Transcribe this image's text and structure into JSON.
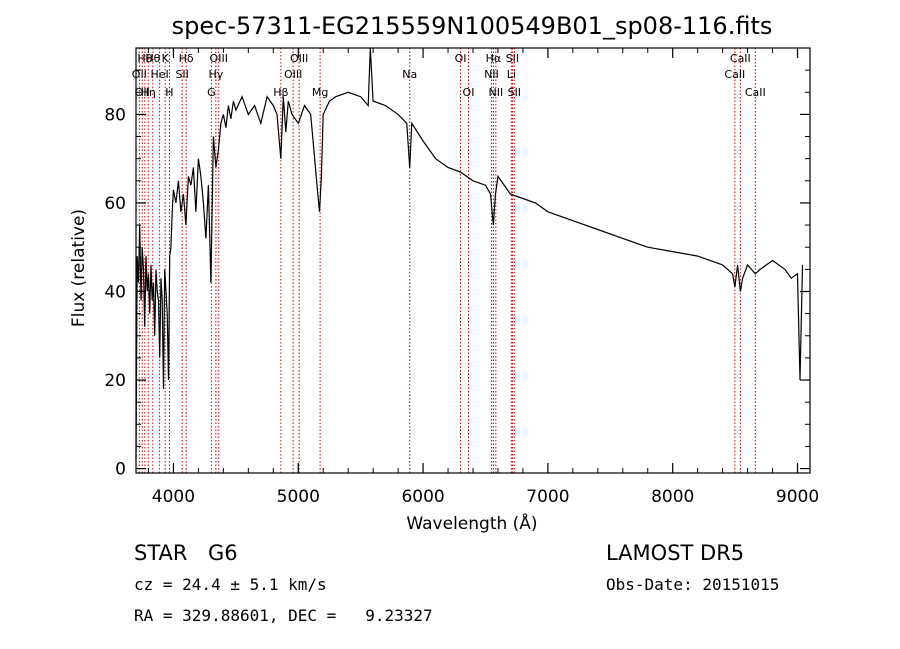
{
  "chart_data": {
    "type": "line",
    "title": "spec-57311-EG215559N100549B01_sp08-116.fits",
    "xlabel": "Wavelength (Å)",
    "ylabel": "Flux (relative)",
    "xlim": [
      3700,
      9100
    ],
    "ylim": [
      -1,
      95
    ],
    "xticks": [
      "4000",
      "5000",
      "6000",
      "7000",
      "8000",
      "9000"
    ],
    "yticks": [
      "0",
      "20",
      "40",
      "60",
      "80"
    ],
    "grid": false,
    "series": [
      {
        "x": [
          3700,
          3710,
          3720,
          3730,
          3740,
          3750,
          3760,
          3770,
          3780,
          3790,
          3800,
          3810,
          3820,
          3830,
          3840,
          3850,
          3860,
          3870,
          3880,
          3890,
          3900,
          3910,
          3920,
          3930,
          3940,
          3950,
          3960,
          3970,
          3980,
          3990,
          4000,
          4020,
          4040,
          4060,
          4080,
          4100,
          4120,
          4140,
          4160,
          4180,
          4200,
          4220,
          4240,
          4260,
          4280,
          4300,
          4320,
          4340,
          4360,
          4380,
          4400,
          4420,
          4440,
          4460,
          4480,
          4500,
          4550,
          4600,
          4650,
          4700,
          4750,
          4800,
          4830,
          4860,
          4880,
          4900,
          4920,
          4950,
          5000,
          5050,
          5100,
          5150,
          5170,
          5185,
          5200,
          5250,
          5300,
          5400,
          5500,
          5560,
          5577,
          5600,
          5700,
          5800,
          5870,
          5893,
          5910,
          6000,
          6100,
          6200,
          6300,
          6400,
          6500,
          6540,
          6563,
          6580,
          6600,
          6700,
          6800,
          6900,
          7000,
          7200,
          7400,
          7600,
          7800,
          8000,
          8200,
          8400,
          8480,
          8498,
          8520,
          8542,
          8560,
          8600,
          8662,
          8700,
          8800,
          8900,
          8950,
          9000,
          9020,
          9040
        ],
        "y": [
          2,
          48,
          42,
          55,
          38,
          50,
          45,
          32,
          48,
          40,
          44,
          35,
          46,
          38,
          42,
          30,
          45,
          40,
          38,
          25,
          43,
          38,
          18,
          45,
          40,
          35,
          20,
          48,
          50,
          58,
          63,
          60,
          65,
          58,
          62,
          55,
          66,
          64,
          68,
          58,
          70,
          66,
          60,
          52,
          64,
          42,
          75,
          68,
          72,
          78,
          80,
          77,
          82,
          79,
          83,
          81,
          84,
          80,
          82,
          78,
          84,
          82,
          80,
          70,
          84,
          76,
          83,
          80,
          78,
          82,
          80,
          64,
          58,
          66,
          80,
          83,
          84,
          85,
          84,
          82,
          95,
          83,
          82,
          80,
          78,
          68,
          78,
          74,
          70,
          68,
          67,
          65,
          64,
          62,
          55,
          62,
          66,
          62,
          61,
          60,
          58,
          56,
          54,
          52,
          50,
          49,
          48,
          46,
          44,
          41,
          46,
          40,
          43,
          46,
          44,
          45,
          47,
          45,
          43,
          44,
          20,
          46
        ]
      }
    ],
    "line_markers": [
      {
        "wl": 3727,
        "label": "OII",
        "row": 2
      },
      {
        "wl": 3750,
        "label": "OII",
        "row": 3
      },
      {
        "wl": 3771,
        "label": "Hθ",
        "row": 1
      },
      {
        "wl": 3798,
        "label": "Hη",
        "row": 3
      },
      {
        "wl": 3835,
        "label": "Hθ",
        "row": 1
      },
      {
        "wl": 3889,
        "label": "HeI",
        "row": 2
      },
      {
        "wl": 3934,
        "label": "K",
        "row": 1
      },
      {
        "wl": 3968,
        "label": "H",
        "row": 3
      },
      {
        "wl": 4070,
        "label": "SII",
        "row": 2
      },
      {
        "wl": 4102,
        "label": "Hδ",
        "row": 1
      },
      {
        "wl": 4304,
        "label": "G",
        "row": 3
      },
      {
        "wl": 4340,
        "label": "Hγ",
        "row": 2
      },
      {
        "wl": 4363,
        "label": "OIII",
        "row": 1
      },
      {
        "wl": 4861,
        "label": "Hβ",
        "row": 3
      },
      {
        "wl": 4959,
        "label": "OIII",
        "row": 2
      },
      {
        "wl": 5007,
        "label": "OIII",
        "row": 1
      },
      {
        "wl": 5175,
        "label": "Mg",
        "row": 3
      },
      {
        "wl": 5893,
        "label": "Na",
        "row": 2
      },
      {
        "wl": 6300,
        "label": "OI",
        "row": 1
      },
      {
        "wl": 6364,
        "label": "OI",
        "row": 3
      },
      {
        "wl": 6548,
        "label": "NII",
        "row": 2
      },
      {
        "wl": 6563,
        "label": "Hα",
        "row": 1
      },
      {
        "wl": 6583,
        "label": "NII",
        "row": 3
      },
      {
        "wl": 6707,
        "label": "Li",
        "row": 2
      },
      {
        "wl": 6716,
        "label": "SII",
        "row": 1
      },
      {
        "wl": 6731,
        "label": "SII",
        "row": 3
      },
      {
        "wl": 8498,
        "label": "CaII",
        "row": 2
      },
      {
        "wl": 8542,
        "label": "CaII",
        "row": 1
      },
      {
        "wl": 8662,
        "label": "CaII",
        "row": 3
      }
    ],
    "marker_color": "#cc0000"
  },
  "info": {
    "class_type": "STAR",
    "subclass": "G6",
    "survey": "LAMOST DR5",
    "cz": "cz = 24.4 ± 5.1 km/s",
    "obs_date": "Obs-Date: 20151015",
    "coords": "RA = 329.88601, DEC =   9.23327"
  }
}
